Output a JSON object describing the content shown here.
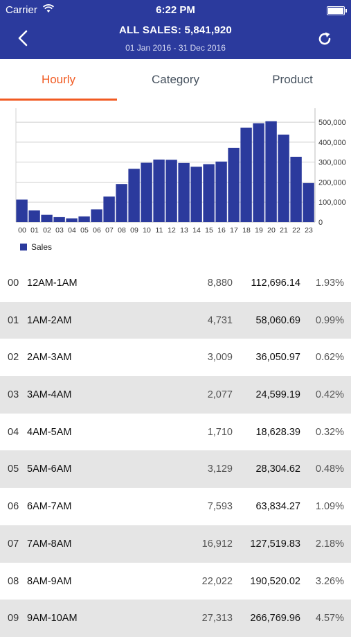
{
  "status_bar": {
    "carrier": "Carrier",
    "time": "6:22 PM"
  },
  "header": {
    "title": "ALL SALES: 5,841,920",
    "date_range": "01 Jan 2016 - 31 Dec 2016",
    "back_icon": "chevron-left-icon",
    "refresh_icon": "refresh-icon"
  },
  "tabs": [
    {
      "label": "Hourly",
      "active": true
    },
    {
      "label": "Category",
      "active": false
    },
    {
      "label": "Product",
      "active": false
    }
  ],
  "colors": {
    "header": "#2b3a9d",
    "bar": "#2b3a9d",
    "accent": "#f15a22"
  },
  "chart_data": {
    "type": "bar",
    "categories": [
      "00",
      "01",
      "02",
      "03",
      "04",
      "05",
      "06",
      "07",
      "08",
      "09",
      "10",
      "11",
      "12",
      "13",
      "14",
      "15",
      "16",
      "17",
      "18",
      "19",
      "20",
      "21",
      "22",
      "23"
    ],
    "series": [
      {
        "name": "Sales",
        "values": [
          112696,
          58061,
          36051,
          24599,
          18628,
          28305,
          63834,
          127520,
          190520,
          266770,
          297000,
          313000,
          312000,
          296000,
          277000,
          290000,
          303000,
          372000,
          473000,
          495000,
          505000,
          438000,
          327000,
          195000
        ]
      }
    ],
    "y_ticks": [
      "0",
      "100,000",
      "200,000",
      "300,000",
      "400,000",
      "500,000"
    ],
    "ylim": [
      0,
      570000
    ],
    "y_axis_side": "right",
    "grid": true,
    "legend": "bottom-left"
  },
  "rows": [
    {
      "idx": "00",
      "range": "12AM-1AM",
      "count": "8,880",
      "amount": "112,696.14",
      "pct": "1.93%"
    },
    {
      "idx": "01",
      "range": "1AM-2AM",
      "count": "4,731",
      "amount": "58,060.69",
      "pct": "0.99%"
    },
    {
      "idx": "02",
      "range": "2AM-3AM",
      "count": "3,009",
      "amount": "36,050.97",
      "pct": "0.62%"
    },
    {
      "idx": "03",
      "range": "3AM-4AM",
      "count": "2,077",
      "amount": "24,599.19",
      "pct": "0.42%"
    },
    {
      "idx": "04",
      "range": "4AM-5AM",
      "count": "1,710",
      "amount": "18,628.39",
      "pct": "0.32%"
    },
    {
      "idx": "05",
      "range": "5AM-6AM",
      "count": "3,129",
      "amount": "28,304.62",
      "pct": "0.48%"
    },
    {
      "idx": "06",
      "range": "6AM-7AM",
      "count": "7,593",
      "amount": "63,834.27",
      "pct": "1.09%"
    },
    {
      "idx": "07",
      "range": "7AM-8AM",
      "count": "16,912",
      "amount": "127,519.83",
      "pct": "2.18%"
    },
    {
      "idx": "08",
      "range": "8AM-9AM",
      "count": "22,022",
      "amount": "190,520.02",
      "pct": "3.26%"
    },
    {
      "idx": "09",
      "range": "9AM-10AM",
      "count": "27,313",
      "amount": "266,769.96",
      "pct": "4.57%"
    }
  ]
}
